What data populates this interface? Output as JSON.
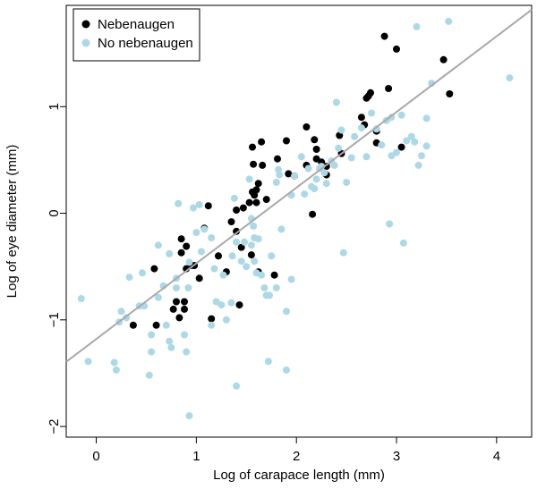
{
  "chart_data": {
    "type": "scatter",
    "title": "",
    "xlabel": "Log of carapace length (mm)",
    "ylabel": "Log of eye diameter (mm)",
    "xlim": [
      -0.3,
      4.35
    ],
    "ylim": [
      -2.1,
      1.95
    ],
    "xticks": [
      0,
      1,
      2,
      3,
      4
    ],
    "xtick_labels": [
      "0",
      "1",
      "2",
      "3",
      "4"
    ],
    "yticks": [
      -2,
      -1,
      0,
      1
    ],
    "ytick_labels": [
      "−2",
      "−1",
      "0",
      "1"
    ],
    "grid": false,
    "legend_position": "top-left",
    "series": [
      {
        "name": "Nebenaugen",
        "color": "#000000",
        "points": [
          [
            0.37,
            -1.05
          ],
          [
            0.58,
            -0.52
          ],
          [
            0.6,
            -1.05
          ],
          [
            0.77,
            -0.9
          ],
          [
            0.8,
            -0.83
          ],
          [
            0.83,
            -0.98
          ],
          [
            0.85,
            -0.24
          ],
          [
            0.85,
            -0.37
          ],
          [
            0.88,
            -0.9
          ],
          [
            0.88,
            -0.83
          ],
          [
            0.9,
            -0.52
          ],
          [
            0.9,
            -0.31
          ],
          [
            0.95,
            -0.49
          ],
          [
            0.98,
            -0.49
          ],
          [
            1.03,
            -0.61
          ],
          [
            1.08,
            -0.14
          ],
          [
            1.12,
            0.07
          ],
          [
            1.15,
            -0.99
          ],
          [
            1.22,
            -0.4
          ],
          [
            1.3,
            -0.55
          ],
          [
            1.35,
            -0.08
          ],
          [
            1.4,
            -0.17
          ],
          [
            1.4,
            0.03
          ],
          [
            1.43,
            -0.86
          ],
          [
            1.45,
            -0.32
          ],
          [
            1.47,
            0.05
          ],
          [
            1.53,
            0.1
          ],
          [
            1.55,
            -0.39
          ],
          [
            1.56,
            0.2
          ],
          [
            1.56,
            0.62
          ],
          [
            1.57,
            0.46
          ],
          [
            1.58,
            0.17
          ],
          [
            1.6,
            0.1
          ],
          [
            1.6,
            0.22
          ],
          [
            1.62,
            0.28
          ],
          [
            1.62,
            -0.55
          ],
          [
            1.65,
            0.67
          ],
          [
            1.66,
            0.45
          ],
          [
            1.7,
            0.13
          ],
          [
            1.78,
            -0.58
          ],
          [
            1.81,
            0.51
          ],
          [
            1.9,
            0.68
          ],
          [
            1.92,
            0.37
          ],
          [
            1.98,
            0.35
          ],
          [
            2.1,
            0.81
          ],
          [
            2.1,
            0.45
          ],
          [
            2.16,
            -0.01
          ],
          [
            2.18,
            0.69
          ],
          [
            2.2,
            0.6
          ],
          [
            2.2,
            0.51
          ],
          [
            2.25,
            0.48
          ],
          [
            2.3,
            0.44
          ],
          [
            2.3,
            0.36
          ],
          [
            2.43,
            0.73
          ],
          [
            2.45,
            0.56
          ],
          [
            2.65,
            0.9
          ],
          [
            2.68,
            0.83
          ],
          [
            2.7,
            1.08
          ],
          [
            2.72,
            1.1
          ],
          [
            2.74,
            1.13
          ],
          [
            2.8,
            0.77
          ],
          [
            2.8,
            0.66
          ],
          [
            2.88,
            1.66
          ],
          [
            2.92,
            1.17
          ],
          [
            3.0,
            1.54
          ],
          [
            3.05,
            0.62
          ],
          [
            3.47,
            1.44
          ],
          [
            3.53,
            1.12
          ]
        ]
      },
      {
        "name": "No nebenaugen",
        "color": "#add8e6",
        "points": [
          [
            -0.15,
            -0.8
          ],
          [
            -0.08,
            -1.39
          ],
          [
            0.18,
            -1.4
          ],
          [
            0.2,
            -1.47
          ],
          [
            0.23,
            -1.02
          ],
          [
            0.25,
            -0.92
          ],
          [
            0.3,
            -0.98
          ],
          [
            0.33,
            -0.6
          ],
          [
            0.43,
            -0.87
          ],
          [
            0.46,
            -0.56
          ],
          [
            0.48,
            -0.87
          ],
          [
            0.53,
            -1.52
          ],
          [
            0.55,
            -1.3
          ],
          [
            0.55,
            -1.14
          ],
          [
            0.62,
            -0.79
          ],
          [
            0.62,
            -0.3
          ],
          [
            0.67,
            -0.68
          ],
          [
            0.7,
            -1.05
          ],
          [
            0.73,
            -1.2
          ],
          [
            0.73,
            -0.38
          ],
          [
            0.75,
            -1.26
          ],
          [
            0.8,
            -0.61
          ],
          [
            0.8,
            -0.7
          ],
          [
            0.82,
            0.09
          ],
          [
            0.88,
            -1.14
          ],
          [
            0.9,
            -1.3
          ],
          [
            0.92,
            -0.7
          ],
          [
            0.93,
            -0.46
          ],
          [
            0.93,
            -1.9
          ],
          [
            0.97,
            0.05
          ],
          [
            1.0,
            -0.18
          ],
          [
            1.03,
            0.08
          ],
          [
            1.05,
            -0.36
          ],
          [
            1.08,
            -0.15
          ],
          [
            1.15,
            -0.23
          ],
          [
            1.15,
            -1.05
          ],
          [
            1.18,
            -0.52
          ],
          [
            1.2,
            -0.83
          ],
          [
            1.25,
            -0.86
          ],
          [
            1.27,
            -0.58
          ],
          [
            1.3,
            -1.0
          ],
          [
            1.35,
            -0.84
          ],
          [
            1.36,
            -0.4
          ],
          [
            1.38,
            0.14
          ],
          [
            1.4,
            -0.27
          ],
          [
            1.4,
            -1.62
          ],
          [
            1.45,
            -0.45
          ],
          [
            1.48,
            -0.27
          ],
          [
            1.5,
            -0.5
          ],
          [
            1.53,
            0.32
          ],
          [
            1.55,
            -0.05
          ],
          [
            1.55,
            -0.3
          ],
          [
            1.57,
            -0.12
          ],
          [
            1.58,
            -0.45
          ],
          [
            1.58,
            -0.23
          ],
          [
            1.6,
            -0.56
          ],
          [
            1.62,
            -0.24
          ],
          [
            1.65,
            -0.58
          ],
          [
            1.68,
            -0.7
          ],
          [
            1.7,
            -0.77
          ],
          [
            1.72,
            -1.39
          ],
          [
            1.73,
            -0.77
          ],
          [
            1.75,
            -0.4
          ],
          [
            1.8,
            -0.7
          ],
          [
            1.8,
            0.29
          ],
          [
            1.82,
            0.41
          ],
          [
            1.83,
            0.36
          ],
          [
            1.85,
            -0.15
          ],
          [
            1.9,
            -0.92
          ],
          [
            1.9,
            -1.47
          ],
          [
            1.95,
            -0.62
          ],
          [
            1.95,
            0.17
          ],
          [
            1.98,
            0.35
          ],
          [
            2.05,
            0.53
          ],
          [
            2.08,
            0.18
          ],
          [
            2.12,
            0.42
          ],
          [
            2.15,
            0.25
          ],
          [
            2.18,
            0.23
          ],
          [
            2.2,
            0.32
          ],
          [
            2.23,
            0.42
          ],
          [
            2.25,
            0.44
          ],
          [
            2.28,
            0.38
          ],
          [
            2.3,
            0.28
          ],
          [
            2.35,
            0.49
          ],
          [
            2.38,
            0.45
          ],
          [
            2.4,
            1.04
          ],
          [
            2.42,
            0.61
          ],
          [
            2.45,
            0.78
          ],
          [
            2.47,
            -0.37
          ],
          [
            2.5,
            0.29
          ],
          [
            2.55,
            0.52
          ],
          [
            2.58,
            0.72
          ],
          [
            2.65,
            0.8
          ],
          [
            2.7,
            0.53
          ],
          [
            2.75,
            0.94
          ],
          [
            2.8,
            0.79
          ],
          [
            2.85,
            0.64
          ],
          [
            2.9,
            0.87
          ],
          [
            2.93,
            -0.1
          ],
          [
            2.95,
            0.54
          ],
          [
            2.95,
            0.9
          ],
          [
            3.0,
            0.57
          ],
          [
            3.05,
            0.92
          ],
          [
            3.07,
            -0.28
          ],
          [
            3.1,
            0.68
          ],
          [
            3.15,
            0.72
          ],
          [
            3.18,
            0.67
          ],
          [
            3.2,
            1.75
          ],
          [
            3.22,
            0.45
          ],
          [
            3.25,
            0.54
          ],
          [
            3.3,
            0.63
          ],
          [
            3.3,
            0.89
          ],
          [
            3.35,
            1.22
          ],
          [
            3.52,
            1.8
          ],
          [
            4.13,
            1.27
          ]
        ]
      }
    ],
    "regression_line": {
      "color": "#a9a9a9",
      "intercept": -1.18,
      "slope": 0.71
    }
  }
}
